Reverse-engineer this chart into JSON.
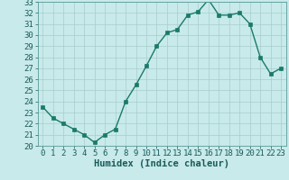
{
  "x": [
    0,
    1,
    2,
    3,
    4,
    5,
    6,
    7,
    8,
    9,
    10,
    11,
    12,
    13,
    14,
    15,
    16,
    17,
    18,
    19,
    20,
    21,
    22,
    23
  ],
  "y": [
    23.5,
    22.5,
    22.0,
    21.5,
    21.0,
    20.3,
    21.0,
    21.5,
    24.0,
    25.5,
    27.2,
    29.0,
    30.2,
    30.5,
    31.8,
    32.1,
    33.2,
    31.8,
    31.8,
    32.0,
    31.0,
    28.0,
    26.5,
    27.0
  ],
  "line_color": "#1a7a6a",
  "marker_color": "#1a7a6a",
  "bg_color": "#c8eaea",
  "grid_color": "#a8cccc",
  "xlabel": "Humidex (Indice chaleur)",
  "ylim": [
    20,
    33
  ],
  "xlim": [
    -0.5,
    23.5
  ],
  "yticks": [
    20,
    21,
    22,
    23,
    24,
    25,
    26,
    27,
    28,
    29,
    30,
    31,
    32,
    33
  ],
  "xticks": [
    0,
    1,
    2,
    3,
    4,
    5,
    6,
    7,
    8,
    9,
    10,
    11,
    12,
    13,
    14,
    15,
    16,
    17,
    18,
    19,
    20,
    21,
    22,
    23
  ],
  "tick_fontsize": 6.5,
  "xlabel_fontsize": 7.5,
  "linewidth": 1.0,
  "markersize": 2.5
}
